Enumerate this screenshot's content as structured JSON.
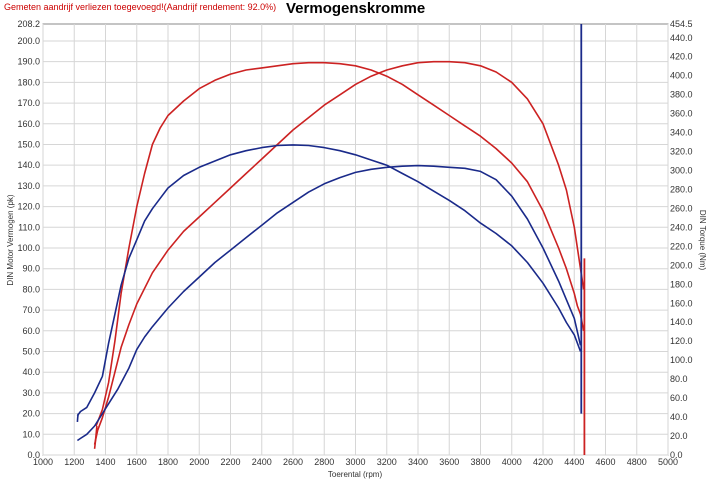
{
  "header": {
    "note": "Gemeten aandrijf verliezen toegevoegd!(Aandrijf rendement: 92.0%)",
    "title": "Vermogenskromme"
  },
  "chart_data": {
    "type": "line",
    "title": "Vermogenskromme",
    "xlabel": "Toerental (rpm)",
    "ylabel_left": "DIN Motor Vermogen (pk)",
    "ylabel_right": "DIN Torque (Nm)",
    "xlim": [
      1000,
      5000
    ],
    "ylim_left": [
      0,
      208.2
    ],
    "ylim_right": [
      0,
      454.5
    ],
    "x_ticks": [
      "1000",
      "1200",
      "1400",
      "1600",
      "1800",
      "2000",
      "2200",
      "2400",
      "2600",
      "2800",
      "3000",
      "3200",
      "3400",
      "3600",
      "3800",
      "4000",
      "4200",
      "4400",
      "4600",
      "4800",
      "5000"
    ],
    "y_left_ticks": [
      "0.0",
      "10.0",
      "20.0",
      "30.0",
      "40.0",
      "50.0",
      "60.0",
      "70.0",
      "80.0",
      "90.0",
      "100.0",
      "110.0",
      "120.0",
      "130.0",
      "140.0",
      "150.0",
      "160.0",
      "170.0",
      "180.0",
      "190.0",
      "200.0",
      "208.2"
    ],
    "y_right_ticks": [
      "0.0",
      "20.0",
      "40.0",
      "60.0",
      "80.0",
      "100.0",
      "120.0",
      "140.0",
      "160.0",
      "180.0",
      "200.0",
      "220.0",
      "240.0",
      "260.0",
      "280.0",
      "300.0",
      "320.0",
      "340.0",
      "360.0",
      "380.0",
      "400.0",
      "420.0",
      "440.0",
      "454.5"
    ],
    "grid": true,
    "colors": {
      "red": "#cc2222",
      "blue": "#1a2a8a"
    },
    "series": [
      {
        "axis": "left",
        "color": "#cc2222",
        "x": [
          1330,
          1350,
          1380,
          1420,
          1460,
          1500,
          1550,
          1600,
          1700,
          1800,
          1900,
          2000,
          2100,
          2200,
          2300,
          2400,
          2500,
          2600,
          2700,
          2800,
          2900,
          3000,
          3100,
          3200,
          3300,
          3400,
          3500,
          3600,
          3700,
          3800,
          3900,
          4000,
          4100,
          4200,
          4300,
          4350,
          4400,
          4420,
          4440,
          4450,
          4460
        ],
        "y": [
          5,
          12,
          18,
          28,
          40,
          52,
          63,
          73,
          88,
          99,
          108,
          115,
          122,
          129,
          136,
          143,
          150,
          157,
          163,
          169,
          174,
          179,
          183,
          186,
          188,
          189.5,
          190,
          190,
          189.5,
          188,
          185,
          180,
          172,
          160,
          140,
          128,
          110,
          100,
          90,
          85,
          80
        ]
      },
      {
        "axis": "left",
        "color": "#cc2222",
        "x": [
          1340,
          1380,
          1420,
          1460,
          1500,
          1550,
          1600,
          1650,
          1700,
          1750,
          1800,
          1900,
          2000,
          2100,
          2200,
          2300,
          2400,
          2500,
          2600,
          2700,
          2800,
          2900,
          3000,
          3100,
          3200,
          3300,
          3400,
          3500,
          3600,
          3700,
          3800,
          3900,
          4000,
          4100,
          4200,
          4300,
          4350,
          4400,
          4420,
          4440,
          4460
        ],
        "y": [
          14,
          22,
          35,
          55,
          78,
          100,
          120,
          136,
          150,
          158,
          164,
          171,
          177,
          181,
          184,
          186,
          187,
          188,
          189,
          189.5,
          189.5,
          189,
          188,
          186,
          183,
          179,
          174,
          169,
          164,
          159,
          154,
          148,
          141,
          132,
          118,
          100,
          90,
          78,
          72,
          68,
          60
        ]
      },
      {
        "axis": "left",
        "color": "#cc2222",
        "x": [
          1330,
          1335,
          1340,
          1345
        ],
        "y": [
          3,
          6,
          10,
          14
        ]
      },
      {
        "axis": "left",
        "color": "#1a2a8a",
        "x": [
          1220,
          1240,
          1280,
          1330,
          1380,
          1430,
          1480,
          1550,
          1600,
          1650,
          1700,
          1800,
          1900,
          2000,
          2100,
          2200,
          2300,
          2400,
          2500,
          2600,
          2700,
          2800,
          2900,
          3000,
          3100,
          3200,
          3300,
          3400,
          3500,
          3600,
          3700,
          3800,
          3900,
          4000,
          4100,
          4200,
          4300,
          4350,
          4400,
          4440
        ],
        "y": [
          7,
          8,
          10,
          14,
          20,
          26,
          32,
          42,
          51,
          57,
          62,
          71,
          79,
          86,
          93,
          99,
          105,
          111,
          117,
          122,
          127,
          131,
          134,
          136.5,
          138,
          139,
          139.5,
          139.8,
          139.5,
          139,
          138.5,
          137,
          133,
          125,
          114,
          100,
          84,
          75,
          66,
          53
        ]
      },
      {
        "axis": "left",
        "color": "#1a2a8a",
        "x": [
          1220,
          1240,
          1280,
          1330,
          1380,
          1420,
          1460,
          1500,
          1550,
          1600,
          1650,
          1700,
          1750,
          1800,
          1900,
          2000,
          2100,
          2200,
          2300,
          2400,
          2500,
          2600,
          2700,
          2800,
          2900,
          3000,
          3100,
          3200,
          3300,
          3400,
          3500,
          3600,
          3700,
          3800,
          3900,
          4000,
          4100,
          4200,
          4300,
          4350,
          4400,
          4440
        ],
        "y": [
          19,
          21,
          23,
          30,
          38,
          54,
          68,
          82,
          95,
          104,
          113,
          119,
          124,
          129,
          135,
          139,
          142,
          145,
          147,
          148.5,
          149.5,
          149.8,
          149.5,
          148.5,
          147,
          145,
          142.5,
          140,
          136,
          132,
          127.5,
          123,
          118,
          112,
          107,
          101,
          93,
          83,
          71,
          64,
          58,
          50
        ]
      },
      {
        "axis": "left",
        "color": "#1a2a8a",
        "x": [
          1220,
          1222,
          1225
        ],
        "y": [
          16,
          18,
          20
        ]
      }
    ]
  }
}
